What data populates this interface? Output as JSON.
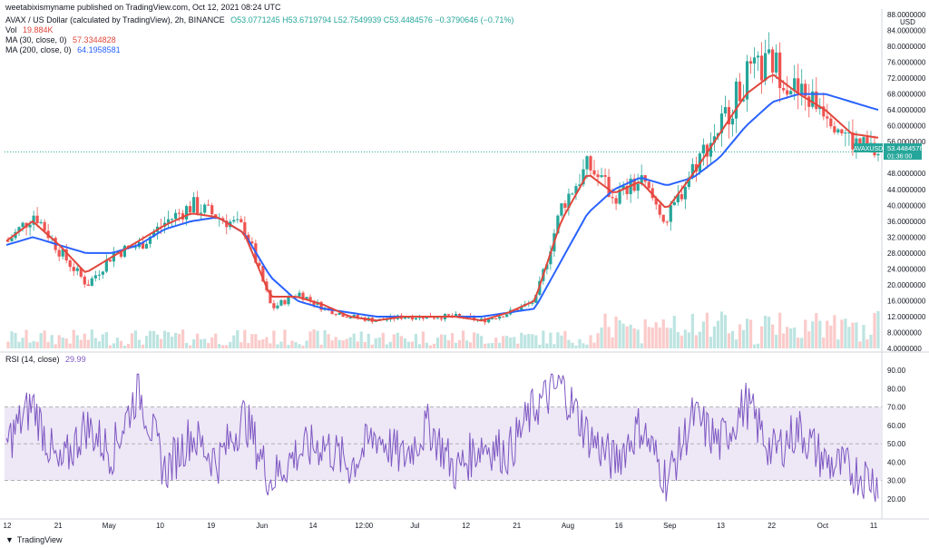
{
  "header": {
    "publisher": "weetabixismyname published on TradingView.com, Oct 12, 2021 08:24 UTC",
    "symbol": "AVAX / US Dollar (calculated by TradingView), 2h, BINANCE",
    "ohlc": "O53.0771245 H53.6719794 L52.7549939 C53.4484576 −0.3790646 (−0.71%)",
    "vol_label": "Vol",
    "vol_value": "19.884K",
    "ma30_label": "MA (30, close, 0)",
    "ma30_value": "57.3344828",
    "ma200_label": "MA (200, close, 0)",
    "ma200_value": "64.1958581"
  },
  "rsi_header": {
    "label": "RSI (14, close)",
    "value": "29.99"
  },
  "price_tag": {
    "symbol": "AVAXUSD",
    "price": "53.4484576",
    "countdown": "01:36:00"
  },
  "footer": {
    "brand": "TradingView"
  },
  "colors": {
    "up": "#26a69a",
    "down": "#ef5350",
    "ma30": "#e0473c",
    "ma200": "#2962ff",
    "rsi": "#7e57c2",
    "rsi_band": "#ede7f6"
  },
  "chart_data": [
    {
      "type": "candlestick",
      "title": "AVAX / US Dollar (calculated by TradingView), 2h, BINANCE",
      "ylabel": "USD",
      "yaxis_top_label": "88.0000000",
      "y_ticks": [
        "84.0000000",
        "80.0000000",
        "76.0000000",
        "72.0000000",
        "68.0000000",
        "64.0000000",
        "60.0000000",
        "56.0000000",
        "48.0000000",
        "44.0000000",
        "40.0000000",
        "36.0000000",
        "32.0000000",
        "28.0000000",
        "24.0000000",
        "20.0000000",
        "16.0000000",
        "12.0000000",
        "8.0000000",
        "4.0000000"
      ],
      "ylim": [
        4,
        88
      ],
      "x_ticks": [
        "12",
        "21",
        "May",
        "10",
        "19",
        "Jun",
        "14",
        "12:00",
        "Jul",
        "12",
        "21",
        "Aug",
        "16",
        "Sep",
        "13",
        "22",
        "Oct",
        "11"
      ],
      "approx_closes": [
        31,
        38,
        28,
        20,
        28,
        30,
        36,
        40,
        37,
        34,
        14,
        18,
        14,
        12,
        11,
        12,
        12,
        12,
        11,
        13,
        16,
        40,
        50,
        42,
        46,
        36,
        50,
        60,
        72,
        76,
        68,
        65,
        56,
        53
      ],
      "series": [
        {
          "name": "MA (30, close, 0)",
          "values": [
            31,
            36,
            30,
            23,
            27,
            31,
            35,
            38,
            37,
            33,
            17,
            17,
            15,
            12,
            11,
            12,
            12,
            12,
            11,
            13,
            16,
            36,
            48,
            43,
            46,
            39,
            48,
            58,
            68,
            73,
            68,
            64,
            58,
            57
          ]
        },
        {
          "name": "MA (200, close, 0)",
          "values": [
            30,
            32,
            30,
            28,
            28,
            30,
            34,
            36,
            37,
            33,
            22,
            16,
            14,
            13,
            12,
            12,
            12,
            12,
            12,
            13,
            14,
            26,
            38,
            44,
            47,
            45,
            47,
            52,
            60,
            66,
            68,
            68,
            66,
            64
          ]
        }
      ]
    },
    {
      "type": "line",
      "title": "RSI (14, close)",
      "ylim": [
        15,
        95
      ],
      "y_ticks": [
        "90.00",
        "80.00",
        "70.00",
        "60.00",
        "50.00",
        "40.00",
        "30.00",
        "20.00"
      ],
      "bands": [
        30,
        70
      ],
      "mid": 50,
      "approx_values": [
        50,
        72,
        35,
        60,
        45,
        80,
        35,
        55,
        40,
        65,
        30,
        45,
        50,
        38,
        55,
        42,
        60,
        35,
        50,
        45,
        70,
        82,
        55,
        40,
        60,
        30,
        65,
        50,
        72,
        45,
        58,
        40,
        35,
        30
      ]
    }
  ]
}
